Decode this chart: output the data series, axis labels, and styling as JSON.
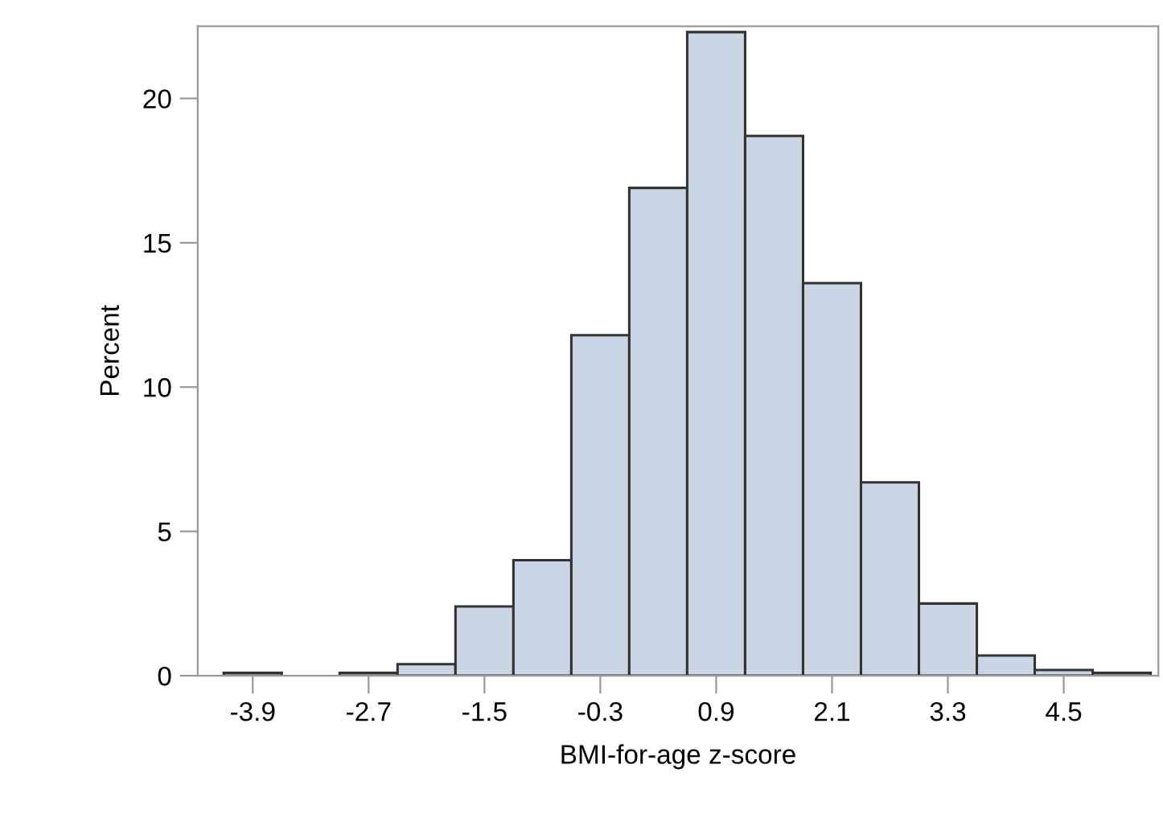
{
  "chart_data": {
    "type": "histogram",
    "xlabel": "BMI-for-age z-score",
    "ylabel": "Percent",
    "bins": [
      -4.2,
      -3.6,
      -3.0,
      -2.4,
      -1.8,
      -1.2,
      -0.6,
      0.0,
      0.6,
      1.2,
      1.8,
      2.4,
      3.0,
      3.6,
      4.2,
      4.8,
      5.4
    ],
    "values": [
      0.1,
      0,
      0.1,
      0.4,
      2.4,
      4.0,
      11.8,
      16.9,
      22.3,
      18.7,
      13.6,
      6.7,
      2.5,
      0.7,
      0.2,
      0.1
    ],
    "color": "#cad5e5",
    "xlim": [
      -4.47,
      5.48
    ],
    "xticks": [
      -3.9,
      -2.7,
      -1.5,
      -0.3,
      0.9,
      2.1,
      3.3,
      4.5
    ],
    "ylim": [
      0,
      22.5
    ],
    "yticks": [
      0,
      5,
      10,
      15,
      20
    ],
    "grid": false
  }
}
